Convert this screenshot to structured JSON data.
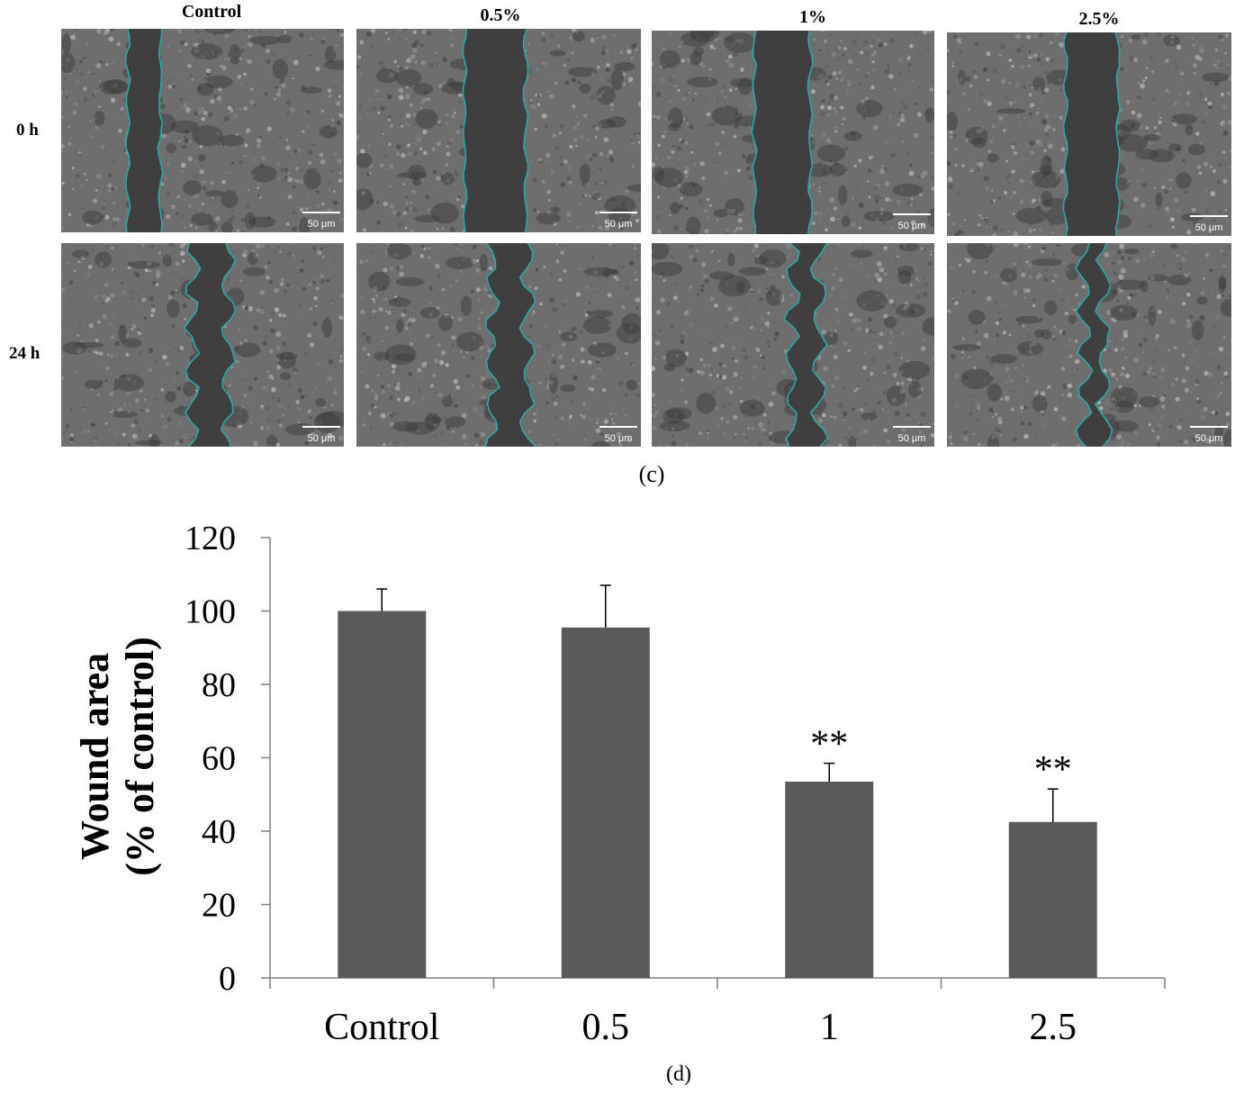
{
  "micrographs": {
    "columns": [
      "Control",
      "0.5%",
      "1%",
      "2.5%"
    ],
    "rows": [
      "0 h",
      "24 h"
    ],
    "scale_bar_label": "50 μm",
    "wound_edge_color": "#2fa6a6",
    "caption": "(c)"
  },
  "chart_caption": "(d)",
  "chart_data": {
    "type": "bar",
    "categories": [
      "Control",
      "0.5",
      "1",
      "2.5"
    ],
    "values": [
      100,
      95.5,
      53.5,
      42.5
    ],
    "errors": [
      6,
      11.5,
      5,
      9
    ],
    "annotations": [
      "",
      "",
      "**",
      "**"
    ],
    "ylabel_line1": "Wound area",
    "ylabel_line2": "(% of control)",
    "xlabel": "",
    "ylim": [
      0,
      120
    ],
    "yticks": [
      0,
      20,
      40,
      60,
      80,
      100,
      120
    ],
    "bar_color": "#5a5a5a"
  }
}
